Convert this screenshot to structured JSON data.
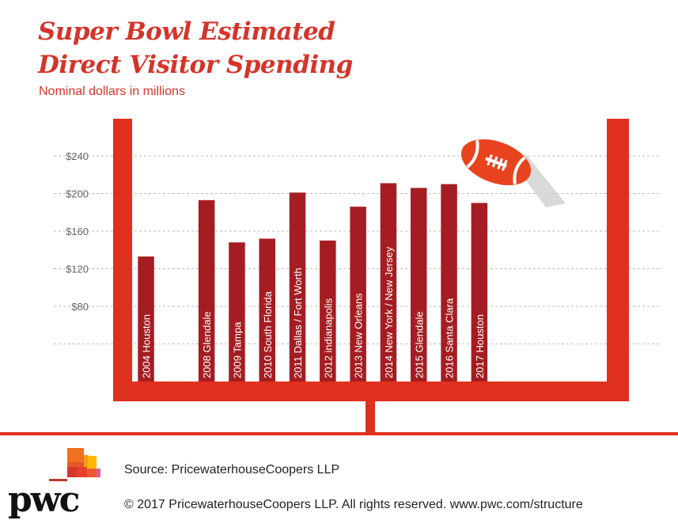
{
  "chart_data": {
    "type": "bar",
    "title": "Super Bowl Estimated Direct Visitor Spending",
    "title_lines": [
      "Super Bowl Estimated",
      "Direct Visitor Spending"
    ],
    "subtitle": "Nominal dollars in millions",
    "categories": [
      "2004 Houston",
      "",
      "2008 Glendale",
      "2009 Tampa",
      "2010 South Florida",
      "2011 Dallas / Fort Worth",
      "2012 indianapolis",
      "2013 New Orleans",
      "2014 New York / New Jersey",
      "2015 Glendale",
      "2016 Santa Clara",
      "2017 Houston"
    ],
    "values": [
      133,
      null,
      193,
      148,
      152,
      201,
      150,
      186,
      211,
      206,
      210,
      190
    ],
    "yticks": [
      80,
      120,
      160,
      200,
      240
    ],
    "ytick_labels": [
      "$80",
      "$120",
      "$160",
      "$200",
      "$240"
    ],
    "gridlines_at": [
      40,
      80,
      120,
      160,
      200,
      240
    ],
    "ylim": [
      0,
      240
    ],
    "grid": "dashed horizontal",
    "colors": {
      "bar": "#a51d22",
      "goalpost": "#e0301e",
      "title": "#d5342a",
      "football": "#e8431f"
    }
  },
  "footer": {
    "source": "Source: PricewaterhouseCoopers LLP",
    "copyright": "© 2017 PricewaterhouseCoopers LLP. All rights reserved. www.pwc.com/structure",
    "logo_text": "pwc"
  }
}
